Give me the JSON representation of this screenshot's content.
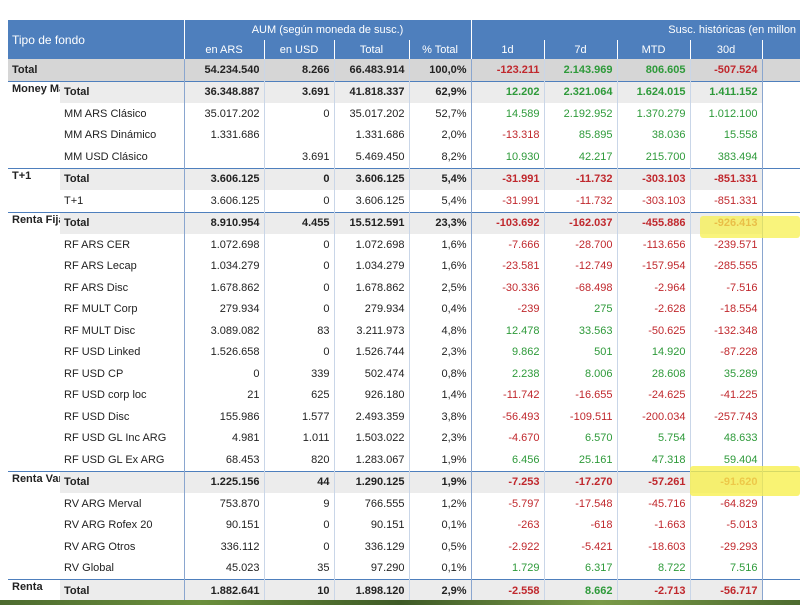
{
  "header": {
    "tipo_label": "Tipo de fondo",
    "aum_group": "AUM (según moneda de susc.)",
    "susc_group": "Susc. históricas (en millon",
    "cols": [
      "en ARS",
      "en USD",
      "Total",
      "% Total",
      "1d",
      "7d",
      "MTD",
      "30d"
    ]
  },
  "rows": [
    {
      "group": "",
      "label": "Total",
      "type": "grand",
      "v": [
        "54.234.540",
        "8.266",
        "66.483.914",
        "100,0%",
        "-123.211",
        "2.143.969",
        "806.605",
        "-507.524"
      ]
    },
    {
      "group": "Money Market",
      "label": "Total",
      "type": "sub",
      "v": [
        "36.348.887",
        "3.691",
        "41.818.337",
        "62,9%",
        "12.202",
        "2.321.064",
        "1.624.015",
        "1.411.152"
      ]
    },
    {
      "group": "",
      "label": "MM ARS Clásico",
      "type": "item",
      "v": [
        "35.017.202",
        "0",
        "35.017.202",
        "52,7%",
        "14.589",
        "2.192.952",
        "1.370.279",
        "1.012.100"
      ]
    },
    {
      "group": "",
      "label": "MM ARS Dinámico",
      "type": "item",
      "v": [
        "1.331.686",
        "",
        "1.331.686",
        "2,0%",
        "-13.318",
        "85.895",
        "38.036",
        "15.558"
      ]
    },
    {
      "group": "",
      "label": "MM USD Clásico",
      "type": "item",
      "v": [
        "",
        "3.691",
        "5.469.450",
        "8,2%",
        "10.930",
        "42.217",
        "215.700",
        "383.494"
      ]
    },
    {
      "group": "T+1",
      "label": "Total",
      "type": "sub",
      "v": [
        "3.606.125",
        "0",
        "3.606.125",
        "5,4%",
        "-31.991",
        "-11.732",
        "-303.103",
        "-851.331"
      ]
    },
    {
      "group": "",
      "label": "T+1",
      "type": "item",
      "v": [
        "3.606.125",
        "0",
        "3.606.125",
        "5,4%",
        "-31.991",
        "-11.732",
        "-303.103",
        "-851.331"
      ]
    },
    {
      "group": "Renta Fija",
      "label": "Total",
      "type": "sub",
      "v": [
        "8.910.954",
        "4.455",
        "15.512.591",
        "23,3%",
        "-103.692",
        "-162.037",
        "-455.886",
        "-926.413"
      ]
    },
    {
      "group": "",
      "label": "RF ARS CER",
      "type": "item",
      "v": [
        "1.072.698",
        "0",
        "1.072.698",
        "1,6%",
        "-7.666",
        "-28.700",
        "-113.656",
        "-239.571"
      ]
    },
    {
      "group": "",
      "label": "RF ARS Lecap",
      "type": "item",
      "v": [
        "1.034.279",
        "0",
        "1.034.279",
        "1,6%",
        "-23.581",
        "-12.749",
        "-157.954",
        "-285.555"
      ]
    },
    {
      "group": "",
      "label": "RF ARS Disc",
      "type": "item",
      "v": [
        "1.678.862",
        "0",
        "1.678.862",
        "2,5%",
        "-30.336",
        "-68.498",
        "-2.964",
        "-7.516"
      ]
    },
    {
      "group": "",
      "label": "RF MULT Corp",
      "type": "item",
      "v": [
        "279.934",
        "0",
        "279.934",
        "0,4%",
        "-239",
        "275",
        "-2.628",
        "-18.554"
      ]
    },
    {
      "group": "",
      "label": "RF MULT Disc",
      "type": "item",
      "v": [
        "3.089.082",
        "83",
        "3.211.973",
        "4,8%",
        "12.478",
        "33.563",
        "-50.625",
        "-132.348"
      ]
    },
    {
      "group": "",
      "label": "RF USD Linked",
      "type": "item",
      "v": [
        "1.526.658",
        "0",
        "1.526.744",
        "2,3%",
        "9.862",
        "501",
        "14.920",
        "-87.228"
      ]
    },
    {
      "group": "",
      "label": "RF USD CP",
      "type": "item",
      "v": [
        "0",
        "339",
        "502.474",
        "0,8%",
        "2.238",
        "8.006",
        "28.608",
        "35.289"
      ]
    },
    {
      "group": "",
      "label": "RF USD corp loc",
      "type": "item",
      "v": [
        "21",
        "625",
        "926.180",
        "1,4%",
        "-11.742",
        "-16.655",
        "-24.625",
        "-41.225"
      ]
    },
    {
      "group": "",
      "label": "RF USD Disc",
      "type": "item",
      "v": [
        "155.986",
        "1.577",
        "2.493.359",
        "3,8%",
        "-56.493",
        "-109.511",
        "-200.034",
        "-257.743"
      ]
    },
    {
      "group": "",
      "label": "RF USD GL Inc ARG",
      "type": "item",
      "v": [
        "4.981",
        "1.011",
        "1.503.022",
        "2,3%",
        "-4.670",
        "6.570",
        "5.754",
        "48.633"
      ]
    },
    {
      "group": "",
      "label": "RF USD GL Ex ARG",
      "type": "item",
      "v": [
        "68.453",
        "820",
        "1.283.067",
        "1,9%",
        "6.456",
        "25.161",
        "47.318",
        "59.404"
      ]
    },
    {
      "group": "Renta Variable",
      "label": "Total",
      "type": "sub",
      "v": [
        "1.225.156",
        "44",
        "1.290.125",
        "1,9%",
        "-7.253",
        "-17.270",
        "-57.261",
        "-91.620"
      ]
    },
    {
      "group": "",
      "label": "RV ARG Merval",
      "type": "item",
      "v": [
        "753.870",
        "9",
        "766.555",
        "1,2%",
        "-5.797",
        "-17.548",
        "-45.716",
        "-64.829"
      ]
    },
    {
      "group": "",
      "label": "RV ARG Rofex 20",
      "type": "item",
      "v": [
        "90.151",
        "0",
        "90.151",
        "0,1%",
        "-263",
        "-618",
        "-1.663",
        "-5.013"
      ]
    },
    {
      "group": "",
      "label": "RV ARG Otros",
      "type": "item",
      "v": [
        "336.112",
        "0",
        "336.129",
        "0,5%",
        "-2.922",
        "-5.421",
        "-18.603",
        "-29.293"
      ]
    },
    {
      "group": "",
      "label": "RV Global",
      "type": "item",
      "v": [
        "45.023",
        "35",
        "97.290",
        "0,1%",
        "1.729",
        "6.317",
        "8.722",
        "7.516"
      ]
    },
    {
      "group": "Renta",
      "label": "Total",
      "type": "sub",
      "v": [
        "1.882.641",
        "10",
        "1.898.120",
        "2,9%",
        "-2.558",
        "8.662",
        "-2.713",
        "-56.717"
      ]
    }
  ],
  "colors": {
    "header": "#4e7fbd",
    "positive": "#2e9a3a",
    "negative": "#c0282d",
    "highlight": "#f7f26a"
  }
}
